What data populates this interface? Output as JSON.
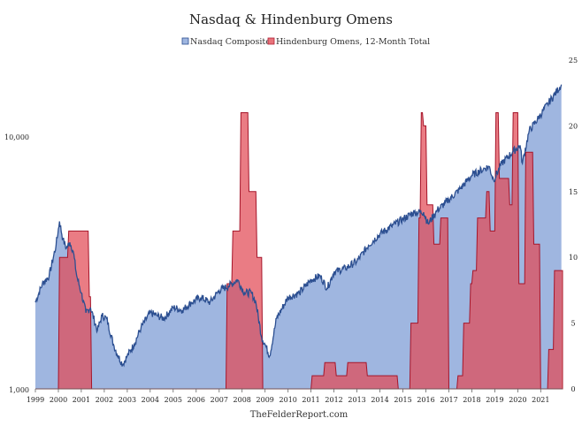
{
  "chart_data": {
    "type": "area",
    "title": "Nasdaq & Hindenburg Omens",
    "footer": "TheFelderReport.com",
    "x_ticks": [
      "1999",
      "2000",
      "2001",
      "2002",
      "2003",
      "2004",
      "2005",
      "2006",
      "2007",
      "2008",
      "2009",
      "2010",
      "2011",
      "2012",
      "2013",
      "2014",
      "2015",
      "2016",
      "2017",
      "2018",
      "2019",
      "2020",
      "2021"
    ],
    "xlim": [
      1999.0,
      2021.95
    ],
    "y_left": {
      "scale": "log",
      "range": [
        1000,
        20000
      ],
      "ticks": [
        1000,
        10000
      ],
      "tick_labels": [
        "1,000",
        "10,000"
      ]
    },
    "y_right": {
      "scale": "linear",
      "range": [
        0,
        25
      ],
      "ticks": [
        0,
        5,
        10,
        15,
        20,
        25
      ],
      "tick_labels": [
        "0",
        "5",
        "10",
        "15",
        "20",
        "25"
      ]
    },
    "legend_position": "top-center",
    "colors": {
      "nasdaq_fill": "#9fb6e0",
      "nasdaq_line": "#2c4f91",
      "omens_fill": "#e8737a",
      "omens_edge": "#b02035"
    },
    "series": [
      {
        "name": "Nasdaq Composite",
        "axis": "left",
        "x": [
          1999.0,
          1999.3,
          1999.6,
          1999.9,
          2000.05,
          2000.2,
          2000.35,
          2000.5,
          2000.65,
          2000.8,
          2001.0,
          2001.2,
          2001.4,
          2001.7,
          2001.9,
          2002.1,
          2002.4,
          2002.6,
          2002.8,
          2003.0,
          2003.3,
          2003.6,
          2004.0,
          2004.3,
          2004.6,
          2005.0,
          2005.4,
          2005.8,
          2006.2,
          2006.6,
          2007.0,
          2007.4,
          2007.8,
          2008.1,
          2008.4,
          2008.6,
          2008.85,
          2009.0,
          2009.2,
          2009.5,
          2010.0,
          2010.5,
          2011.0,
          2011.4,
          2011.7,
          2012.0,
          2012.5,
          2013.0,
          2013.5,
          2014.0,
          2014.5,
          2015.0,
          2015.5,
          2015.9,
          2016.1,
          2016.5,
          2017.0,
          2017.5,
          2018.0,
          2018.5,
          2018.75,
          2018.95,
          2019.3,
          2019.8,
          2020.1,
          2020.2,
          2020.5,
          2020.9,
          2021.3,
          2021.6,
          2021.9
        ],
        "values": [
          2200,
          2600,
          2800,
          3700,
          4600,
          3900,
          3600,
          3800,
          3500,
          2800,
          2400,
          2000,
          2100,
          1700,
          1950,
          1900,
          1500,
          1350,
          1250,
          1350,
          1500,
          1750,
          2000,
          1950,
          1900,
          2100,
          2050,
          2200,
          2300,
          2200,
          2450,
          2550,
          2700,
          2400,
          2400,
          2200,
          1600,
          1500,
          1350,
          1900,
          2300,
          2400,
          2700,
          2800,
          2500,
          2900,
          3000,
          3200,
          3700,
          4100,
          4400,
          4700,
          5000,
          5000,
          4500,
          5100,
          5600,
          6200,
          7000,
          7400,
          7600,
          6700,
          7800,
          8700,
          9200,
          7800,
          10500,
          11800,
          13400,
          14600,
          16000
        ]
      },
      {
        "name": "Hindenburg Omens, 12-Month Total",
        "axis": "right",
        "x": [
          1999.0,
          2000.0,
          2000.05,
          2000.4,
          2000.45,
          2001.3,
          2001.35,
          2001.4,
          2001.45,
          2007.3,
          2007.35,
          2007.55,
          2007.6,
          2007.9,
          2007.95,
          2008.25,
          2008.3,
          2008.6,
          2008.65,
          2008.85,
          2008.9,
          2011.0,
          2011.05,
          2011.55,
          2011.6,
          2012.05,
          2012.1,
          2012.55,
          2012.6,
          2013.4,
          2013.45,
          2014.75,
          2014.8,
          2015.3,
          2015.35,
          2015.65,
          2015.7,
          2015.75,
          2015.8,
          2015.85,
          2015.9,
          2016.0,
          2016.05,
          2016.3,
          2016.35,
          2016.6,
          2016.65,
          2016.95,
          2017.0,
          2017.35,
          2017.4,
          2017.6,
          2017.65,
          2017.9,
          2017.95,
          2018.0,
          2018.05,
          2018.2,
          2018.25,
          2018.6,
          2018.65,
          2018.75,
          2018.8,
          2019.0,
          2019.05,
          2019.15,
          2019.2,
          2019.6,
          2019.65,
          2019.75,
          2019.8,
          2020.0,
          2020.05,
          2020.3,
          2020.35,
          2020.65,
          2020.7,
          2020.95,
          2021.0,
          2021.3,
          2021.35,
          2021.55,
          2021.6,
          2021.95
        ],
        "values": [
          0,
          0,
          10,
          10,
          12,
          12,
          7,
          7,
          0,
          0,
          8,
          8,
          12,
          12,
          21,
          21,
          15,
          15,
          10,
          10,
          0,
          0,
          1,
          1,
          2,
          2,
          1,
          1,
          2,
          2,
          1,
          1,
          0,
          0,
          5,
          5,
          13,
          13,
          21,
          21,
          20,
          20,
          14,
          14,
          11,
          11,
          13,
          13,
          0,
          0,
          1,
          1,
          5,
          5,
          8,
          8,
          9,
          9,
          13,
          13,
          15,
          15,
          12,
          12,
          21,
          21,
          16,
          16,
          14,
          14,
          21,
          21,
          8,
          8,
          18,
          18,
          11,
          11,
          0,
          0,
          3,
          3,
          9,
          9
        ]
      }
    ]
  }
}
